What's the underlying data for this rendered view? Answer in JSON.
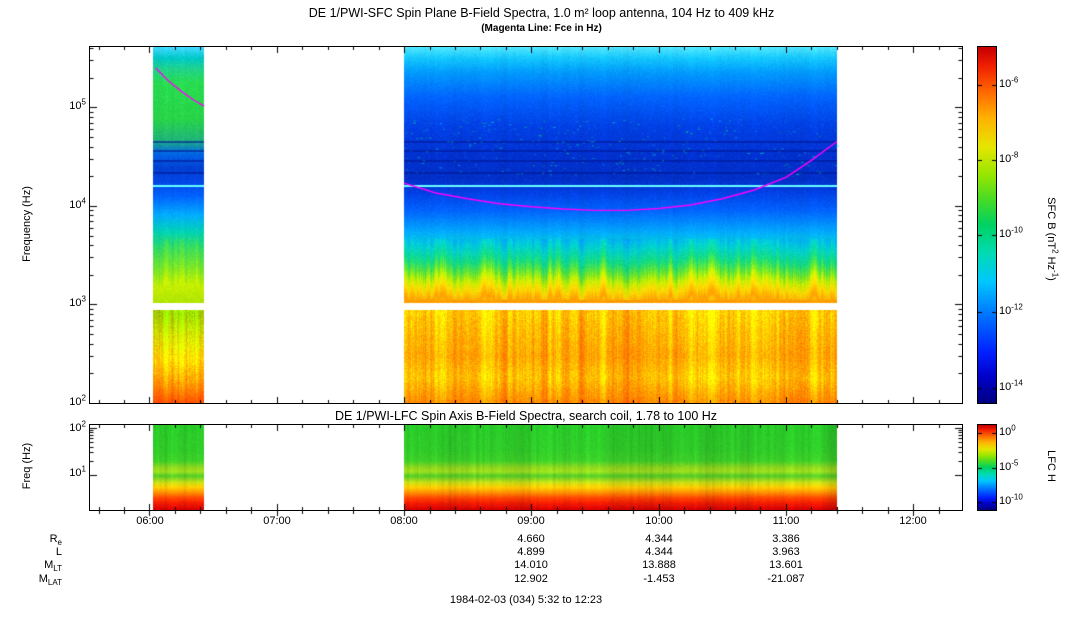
{
  "header": {
    "title": "DE 1/PWI-SFC  Spin Plane B-Field Spectra, 1.0 m² loop antenna, 104 Hz to 409 kHz",
    "subtitle": "(Magenta Line: Fce in Hz)"
  },
  "sfc_panel": {
    "ylabel": "Frequency (Hz)",
    "yticks": [
      {
        "base": "10",
        "exp": "5"
      },
      {
        "base": "10",
        "exp": "4"
      },
      {
        "base": "10",
        "exp": "3"
      },
      {
        "base": "10",
        "exp": "2"
      }
    ],
    "colorbar": {
      "label_pre": "SFC B (nT",
      "label_sup1": "2",
      "label_mid": " Hz",
      "label_sup2": "-1",
      "label_post": ")",
      "ticks": [
        {
          "base": "10",
          "exp": "-6",
          "frac": 0.107
        },
        {
          "base": "10",
          "exp": "-8",
          "frac": 0.317
        },
        {
          "base": "10",
          "exp": "-10",
          "frac": 0.528
        },
        {
          "base": "10",
          "exp": "-12",
          "frac": 0.744
        },
        {
          "base": "10",
          "exp": "-14",
          "frac": 0.958
        }
      ]
    }
  },
  "lfc_panel": {
    "title": "DE 1/PWI-LFC  Spin Axis B-Field Spectra, search coil, 1.78 to 100 Hz",
    "ylabel": "Freq (Hz)",
    "yticks": [
      {
        "base": "10",
        "exp": "2"
      },
      {
        "base": "10",
        "exp": "1"
      }
    ],
    "colorbar": {
      "label": "LFC H",
      "ticks": [
        {
          "base": "10",
          "exp": "0",
          "frac": 0.09
        },
        {
          "base": "10",
          "exp": "-5",
          "frac": 0.5
        },
        {
          "base": "10",
          "exp": "-10",
          "frac": 0.9
        }
      ]
    }
  },
  "xaxis": {
    "tick_labels": [
      "06:00",
      "07:00",
      "08:00",
      "09:00",
      "10:00",
      "11:00",
      "12:00"
    ]
  },
  "ephemeris": {
    "rows": [
      {
        "label": "R",
        "sub": "e",
        "values": [
          "4.660",
          "4.344",
          "3.386"
        ]
      },
      {
        "label": "L",
        "sub": "",
        "values": [
          "4.899",
          "4.344",
          "3.963"
        ]
      },
      {
        "label": "M",
        "sub": "LT",
        "values": [
          "14.010",
          "13.888",
          "13.601"
        ]
      },
      {
        "label": "M",
        "sub": "LAT",
        "values": [
          "12.902",
          "-1.453",
          "-21.087"
        ]
      }
    ],
    "column_hours": [
      9,
      10,
      11
    ]
  },
  "footer": {
    "date_label": "1984-02-03 (034) 5:32 to 12:23"
  },
  "chart_data": {
    "type": "heatmap",
    "title": "DE 1/PWI-SFC Spin Plane B-Field Spectra, 1.0 m² loop antenna, 104 Hz to 409 kHz",
    "legend": "Magenta Line: Fce in Hz",
    "time_range_hours": [
      5.533,
      12.383
    ],
    "time_tick_hours": [
      6,
      7,
      8,
      9,
      10,
      11,
      12
    ],
    "fce_color": "#FF00FF",
    "colorbar_stops": [
      [
        0.0,
        "#000082"
      ],
      [
        0.07,
        "#0000C8"
      ],
      [
        0.14,
        "#0020FF"
      ],
      [
        0.25,
        "#0078FF"
      ],
      [
        0.34,
        "#00C8FF"
      ],
      [
        0.42,
        "#00DCB4"
      ],
      [
        0.5,
        "#00D264"
      ],
      [
        0.57,
        "#46DC28"
      ],
      [
        0.64,
        "#96E600"
      ],
      [
        0.72,
        "#E6E600"
      ],
      [
        0.8,
        "#FFB400"
      ],
      [
        0.88,
        "#FF6400"
      ],
      [
        0.95,
        "#F01E00"
      ],
      [
        1.0,
        "#C80000"
      ]
    ],
    "panels": [
      {
        "name": "SFC",
        "freq_range_hz": [
          100,
          409000
        ],
        "log_top": 5.612,
        "log_bottom": 2.0,
        "gap_freq_hz": [
          880,
          1030
        ],
        "cyan_line_freq_hz": 16000,
        "dark_stripe_freqs_hz": [
          22000,
          29000,
          37000,
          45000
        ],
        "burst_zone": [
          0.54,
          0.71
        ],
        "col_mod": 0.04,
        "noise": 14,
        "speckles": {
          "segment": 1,
          "count": 280,
          "zone": [
            0.2,
            0.36
          ]
        },
        "value_scale": {
          "label": "SFC B (nT2 Hz-1)",
          "tick_exponents": [
            -6,
            -8,
            -10,
            -12,
            -14
          ]
        },
        "segments": [
          {
            "t0": 6.03,
            "t1": 6.43,
            "profile": "seg1"
          },
          {
            "t0": 8.0,
            "t1": 11.4,
            "profile": "seg2"
          }
        ],
        "profiles": {
          "seg1": [
            [
              0.0,
              "#40D8FF"
            ],
            [
              0.03,
              "#00C8C8"
            ],
            [
              0.06,
              "#20D28C"
            ],
            [
              0.1,
              "#28DC50"
            ],
            [
              0.2,
              "#28D448"
            ],
            [
              0.26,
              "#20B478"
            ],
            [
              0.3,
              "#0064E6"
            ],
            [
              0.34,
              "#0040D2"
            ],
            [
              0.38,
              "#0046E6"
            ],
            [
              0.42,
              "#0064FF"
            ],
            [
              0.47,
              "#00AAFF"
            ],
            [
              0.52,
              "#00D2B4"
            ],
            [
              0.56,
              "#32DC64"
            ],
            [
              0.62,
              "#78E628"
            ],
            [
              0.67,
              "#C8F000"
            ],
            [
              0.71,
              "#B4E600"
            ],
            [
              0.75,
              "#A0DC00"
            ],
            [
              0.82,
              "#DCE600"
            ],
            [
              0.88,
              "#FFDC00"
            ],
            [
              0.94,
              "#FFA000"
            ],
            [
              1.0,
              "#FF5000"
            ]
          ],
          "seg2": [
            [
              0.0,
              "#50E6FF"
            ],
            [
              0.03,
              "#14C8FF"
            ],
            [
              0.07,
              "#009BFF"
            ],
            [
              0.14,
              "#0064FF"
            ],
            [
              0.22,
              "#0041E6"
            ],
            [
              0.3,
              "#0032D2"
            ],
            [
              0.37,
              "#0030C8"
            ],
            [
              0.41,
              "#0041E6"
            ],
            [
              0.46,
              "#0064FF"
            ],
            [
              0.52,
              "#00AAFF"
            ],
            [
              0.56,
              "#00D2D2"
            ],
            [
              0.6,
              "#14DC82"
            ],
            [
              0.63,
              "#64E632"
            ],
            [
              0.655,
              "#C8F000"
            ],
            [
              0.68,
              "#FFDC00"
            ],
            [
              0.7,
              "#FFB400"
            ],
            [
              0.715,
              "#FF9B00"
            ],
            [
              0.745,
              "#FFD200"
            ],
            [
              0.8,
              "#FFBE00"
            ],
            [
              0.87,
              "#FFAA00"
            ],
            [
              0.93,
              "#FFC800"
            ],
            [
              1.0,
              "#FF8C00"
            ]
          ]
        },
        "fce_lines": [
          [
            [
              6.05,
              250000
            ],
            [
              6.15,
              185000
            ],
            [
              6.25,
              145000
            ],
            [
              6.35,
              118000
            ],
            [
              6.43,
              103000
            ]
          ],
          [
            [
              8.0,
              17000
            ],
            [
              8.25,
              13500
            ],
            [
              8.5,
              11800
            ],
            [
              8.75,
              10500
            ],
            [
              9.0,
              9800
            ],
            [
              9.25,
              9300
            ],
            [
              9.5,
              9000
            ],
            [
              9.75,
              9000
            ],
            [
              10.0,
              9400
            ],
            [
              10.25,
              10200
            ],
            [
              10.5,
              11800
            ],
            [
              10.75,
              14500
            ],
            [
              11.0,
              19500
            ],
            [
              11.2,
              29000
            ],
            [
              11.4,
              45000
            ]
          ]
        ]
      },
      {
        "name": "LFC",
        "freq_range_hz": [
          1.78,
          100
        ],
        "log_top": 2.06,
        "log_bottom": 0.25,
        "col_mod": 0.1,
        "noise": 10,
        "value_scale": {
          "label": "LFC H",
          "tick_exponents": [
            0,
            -5,
            -10
          ]
        },
        "segments": [
          {
            "t0": 6.03,
            "t1": 6.43,
            "profile": "main"
          },
          {
            "t0": 8.0,
            "t1": 11.4,
            "profile": "main"
          }
        ],
        "profiles": {
          "main": [
            [
              0.0,
              "#28C828"
            ],
            [
              0.3,
              "#30C828"
            ],
            [
              0.42,
              "#3CCC28"
            ],
            [
              0.5,
              "#8CD21E"
            ],
            [
              0.55,
              "#9BDC1E"
            ],
            [
              0.6,
              "#50C828"
            ],
            [
              0.68,
              "#C8DC14"
            ],
            [
              0.74,
              "#FFC800"
            ],
            [
              0.8,
              "#FF8C00"
            ],
            [
              0.86,
              "#FF4600"
            ],
            [
              0.92,
              "#F01E00"
            ],
            [
              1.0,
              "#D20000"
            ]
          ]
        }
      }
    ]
  }
}
